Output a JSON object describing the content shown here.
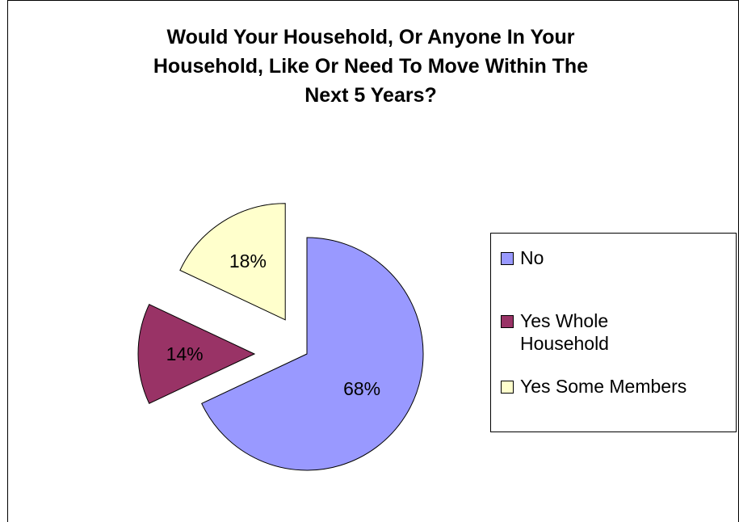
{
  "chart_data": {
    "type": "pie",
    "title_lines": [
      "Would Your Household, Or Anyone In Your",
      "Household, Like Or Need To Move Within The",
      "Next 5 Years?"
    ],
    "slices": [
      {
        "name": "No",
        "value": 68,
        "label": "68%",
        "color": "#9999FF"
      },
      {
        "name": "Yes Whole Household",
        "value": 14,
        "label": "14%",
        "color": "#993366"
      },
      {
        "name": "Yes Some Members",
        "value": 18,
        "label": "18%",
        "color": "#FFFFCC"
      }
    ],
    "legend": {
      "position": "right",
      "items": [
        {
          "line1": "No",
          "line2": ""
        },
        {
          "line1": "Yes Whole",
          "line2": "Household"
        },
        {
          "line1": "Yes Some Members",
          "line2": ""
        }
      ]
    },
    "exploded": true
  }
}
